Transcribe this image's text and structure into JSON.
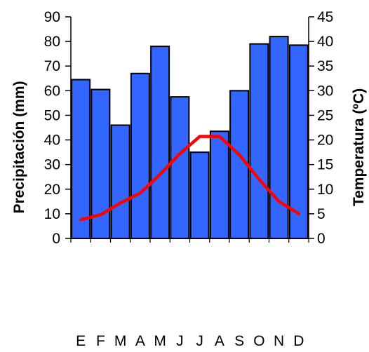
{
  "chart_data": {
    "type": "bar+line",
    "title": "",
    "categories": [
      "E",
      "F",
      "M",
      "A",
      "M",
      "J",
      "J",
      "A",
      "S",
      "O",
      "N",
      "D"
    ],
    "series": [
      {
        "name": "Precipitación",
        "type": "bar",
        "axis": "left",
        "color": "#3366ff",
        "values": [
          64.5,
          60.5,
          46,
          67,
          78,
          57.5,
          35,
          43.5,
          60,
          79,
          82,
          78.5
        ]
      },
      {
        "name": "Temperatura",
        "type": "line",
        "axis": "right",
        "color": "#ff0000",
        "values": [
          3.8,
          4.8,
          7.2,
          9.2,
          13,
          17.2,
          20.7,
          20.7,
          17,
          12,
          7.5,
          5
        ]
      }
    ],
    "ylabel_left": "Precipitación (mm)",
    "ylabel_right": "Temperatura (ºC)",
    "xlabel": "",
    "ylim_left": [
      0,
      90
    ],
    "ylim_right": [
      0,
      45
    ],
    "yticks_left": [
      "0",
      "10",
      "20",
      "30",
      "40",
      "50",
      "60",
      "70",
      "80",
      "90"
    ],
    "yticks_right": [
      "0",
      "5",
      "10",
      "15",
      "20",
      "25",
      "30",
      "35",
      "40",
      "45"
    ],
    "grid": false,
    "legend": "none"
  }
}
